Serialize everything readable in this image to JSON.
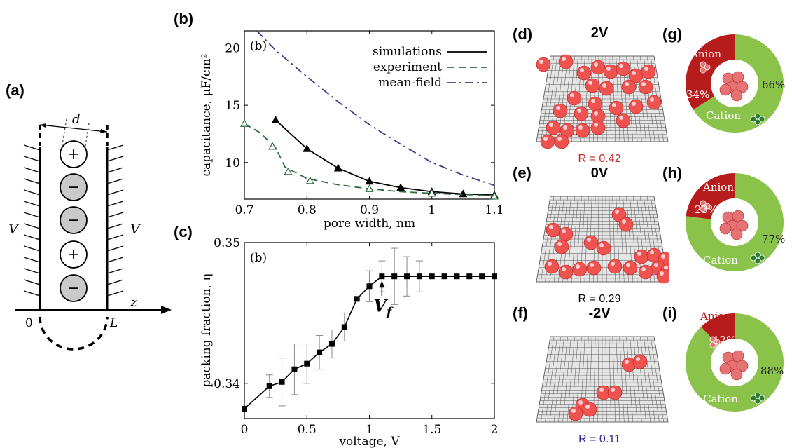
{
  "panels": {
    "a": "(a)",
    "b": "(b)",
    "c": "(c)",
    "d": "(d)",
    "e": "(e)",
    "f": "(f)",
    "g": "(g)",
    "h": "(h)",
    "i": "(i)"
  },
  "schematic": {
    "d_label": "d",
    "V_left": "V",
    "V_right": "V",
    "z_label": "z",
    "zero": "0",
    "L_label": "L",
    "ions": [
      "+",
      "−",
      "−",
      "+",
      "−"
    ]
  },
  "chart_data": [
    {
      "type": "line",
      "inset_tag": "(b)",
      "xlabel": "pore width, nm",
      "ylabel": "capacitance, μF/cm²",
      "xlim": [
        0.7,
        1.1
      ],
      "ylim": [
        6.8,
        21.5
      ],
      "xticks": [
        "0.7",
        "0.8",
        "0.9",
        "1",
        "1.1"
      ],
      "yticks": [
        "10",
        "15",
        "20"
      ],
      "legend_position": "top-right",
      "series": [
        {
          "name": "simulations",
          "style": "solid",
          "color": "#000000",
          "marker": "filled-triangle",
          "x": [
            0.75,
            0.8,
            0.85,
            0.9,
            0.95,
            1.0,
            1.05,
            1.1
          ],
          "y": [
            13.7,
            11.2,
            9.5,
            8.35,
            7.8,
            7.45,
            7.25,
            7.15
          ],
          "marker_x": [
            0.75,
            0.8,
            0.85,
            0.9,
            0.95,
            1.0,
            1.05,
            1.1
          ],
          "marker_y": [
            13.7,
            11.2,
            9.5,
            8.35,
            7.8,
            7.45,
            7.25,
            7.15
          ]
        },
        {
          "name": "experiment",
          "style": "dashed",
          "color": "#2e6b3e",
          "marker": "open-triangle",
          "x": [
            0.7,
            0.725,
            0.75,
            0.765,
            0.8,
            0.85,
            0.9,
            0.95,
            1.0,
            1.05,
            1.1
          ],
          "y": [
            13.4,
            12.6,
            11.3,
            9.6,
            8.6,
            8.05,
            7.7,
            7.45,
            7.3,
            7.2,
            7.1
          ],
          "marker_x": [
            0.7,
            0.745,
            0.77,
            0.805,
            0.9,
            1.0,
            1.1
          ],
          "marker_y": [
            13.4,
            11.4,
            9.2,
            8.4,
            7.7,
            7.3,
            7.05
          ]
        },
        {
          "name": "mean-field",
          "style": "dashdot",
          "color": "#3c3c8c",
          "marker": "none",
          "x": [
            0.72,
            0.75,
            0.8,
            0.85,
            0.9,
            0.95,
            1.0,
            1.05,
            1.1
          ],
          "y": [
            21.5,
            19.8,
            17.5,
            15.3,
            13.3,
            11.6,
            10.0,
            8.9,
            8.0
          ]
        }
      ]
    },
    {
      "type": "scatter",
      "inset_tag": "(b)",
      "xlabel": "voltage, V",
      "ylabel": "packing fraction, η",
      "xlim": [
        0,
        2
      ],
      "ylim": [
        0.3375,
        0.35
      ],
      "xticks": [
        "0",
        "0.5",
        "1",
        "1.5",
        "2"
      ],
      "yticks": [
        "0.34",
        "0.35"
      ],
      "annotation": "V",
      "annotation_sub": "f",
      "x": [
        0,
        0.2,
        0.3,
        0.4,
        0.5,
        0.6,
        0.7,
        0.8,
        0.9,
        1.0,
        1.1,
        1.2,
        1.3,
        1.4,
        1.5,
        1.6,
        1.7,
        1.8,
        1.9,
        2.0
      ],
      "y": [
        0.3382,
        0.3398,
        0.3401,
        0.341,
        0.3414,
        0.3422,
        0.3428,
        0.344,
        0.346,
        0.3469,
        0.3476,
        0.3476,
        0.3476,
        0.3476,
        0.3476,
        0.3476,
        0.3476,
        0.3476,
        0.3476,
        0.3476
      ],
      "err": [
        0,
        0.0008,
        0.0017,
        0.0018,
        0.0014,
        0.0012,
        0.001,
        0.001,
        0,
        0.0011,
        0.0011,
        0.002,
        0.0014,
        0.0011,
        0,
        0,
        0,
        0,
        0,
        0
      ]
    }
  ],
  "simulations": [
    {
      "voltage": "2V",
      "r_text": "R = 0.42",
      "r_color": "#c62828"
    },
    {
      "voltage": "0V",
      "r_text": "R = 0.29",
      "r_color": "#000000"
    },
    {
      "voltage": "-2V",
      "r_text": "R = 0.11",
      "r_color": "#2a2a9a"
    }
  ],
  "donuts": [
    {
      "anion_pct": 34,
      "anion_label": "34%",
      "cation_label": "66%",
      "anion": "Anion",
      "cation": "Cation"
    },
    {
      "anion_pct": 23,
      "anion_label": "23%",
      "cation_label": "77%",
      "anion": "Anion",
      "cation": "Cation"
    },
    {
      "anion_pct": 12,
      "anion_label": "12%",
      "cation_label": "88%",
      "anion": "Anion",
      "cation": "Cation"
    }
  ],
  "colors": {
    "anion": "#b71c1c",
    "cation": "#8bc34a",
    "ion_sphere": "#ef5350",
    "grid_line": "#444444"
  }
}
